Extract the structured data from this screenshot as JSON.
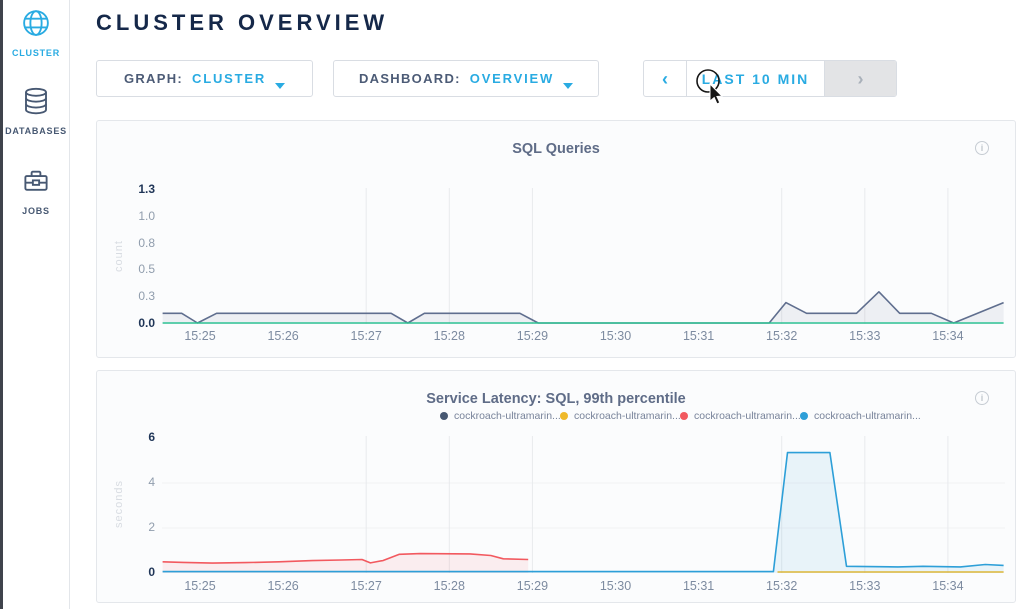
{
  "header": {
    "title": "CLUSTER OVERVIEW"
  },
  "sidebar": {
    "items": [
      {
        "label": "CLUSTER",
        "icon": "globe-icon",
        "active": true
      },
      {
        "label": "DATABASES",
        "icon": "database-icon",
        "active": false
      },
      {
        "label": "JOBS",
        "icon": "briefcase-icon",
        "active": false
      }
    ]
  },
  "controls": {
    "graph": {
      "label": "GRAPH:",
      "value": "CLUSTER"
    },
    "dashboard": {
      "label": "DASHBOARD:",
      "value": "OVERVIEW"
    },
    "time_range": {
      "prev": "‹",
      "label": "LAST 10 MIN",
      "next": "›"
    }
  },
  "colors": {
    "accent_cyan": "#29abe2",
    "navy": "#152849",
    "slate_text": "#4c5b76",
    "series_slate": "#5f6e8e",
    "series_green": "#2ec494",
    "series_yellow": "#efb92a",
    "series_red": "#f2595f",
    "series_blue": "#2d9fd8",
    "grid": "#e8eaed"
  },
  "chart_data": [
    {
      "type": "area",
      "title": "SQL Queries",
      "ylabel": "count",
      "info_icon": "i",
      "ylim": [
        0,
        1.25
      ],
      "yticks": [
        "1.3",
        "1.0",
        "0.8",
        "0.5",
        "0.3",
        "0.0"
      ],
      "xticks": [
        "15:25",
        "15:26",
        "15:27",
        "15:28",
        "15:29",
        "15:30",
        "15:31",
        "15:32",
        "15:33",
        "15:34"
      ],
      "grid_x": [
        "15:27",
        "15:28",
        "15:29",
        "15:32",
        "15:33",
        "15:34"
      ],
      "grid_y_values": [],
      "x_unit": "minutes after 15:00",
      "series": [
        {
          "name": "slate-series",
          "color": "#5f6e8e",
          "fill": true,
          "points": [
            [
              24.55,
              0.1
            ],
            [
              24.78,
              0.1
            ],
            [
              24.97,
              0.0
            ],
            [
              25.2,
              0.1
            ],
            [
              27.3,
              0.1
            ],
            [
              27.5,
              0.0
            ],
            [
              27.7,
              0.1
            ],
            [
              28.85,
              0.1
            ],
            [
              29.07,
              0.0
            ],
            [
              31.85,
              0.0
            ],
            [
              32.05,
              0.2
            ],
            [
              32.3,
              0.1
            ],
            [
              32.9,
              0.1
            ],
            [
              33.17,
              0.3
            ],
            [
              33.42,
              0.1
            ],
            [
              33.8,
              0.1
            ],
            [
              34.07,
              0.0
            ],
            [
              34.67,
              0.2
            ]
          ]
        },
        {
          "name": "green-series",
          "color": "#2ec494",
          "fill": false,
          "points": [
            [
              24.55,
              0.0
            ],
            [
              34.67,
              0.0
            ]
          ]
        }
      ]
    },
    {
      "type": "area",
      "title": "Service Latency: SQL, 99th percentile",
      "ylabel": "seconds",
      "info_icon": "i",
      "ylim": [
        0,
        6
      ],
      "yticks": [
        "6",
        "4",
        "2",
        "0"
      ],
      "xticks": [
        "15:25",
        "15:26",
        "15:27",
        "15:28",
        "15:29",
        "15:30",
        "15:31",
        "15:32",
        "15:33",
        "15:34"
      ],
      "grid_x": [
        "15:27",
        "15:28",
        "15:29",
        "15:32",
        "15:33",
        "15:34"
      ],
      "grid_y_values": [
        2,
        4
      ],
      "x_unit": "minutes after 15:00",
      "legend": [
        {
          "label": "cockroach-ultramarin...",
          "color": "#475872"
        },
        {
          "label": "cockroach-ultramarin...",
          "color": "#efb92a"
        },
        {
          "label": "cockroach-ultramarin...",
          "color": "#f2595f"
        },
        {
          "label": "cockroach-ultramarin...",
          "color": "#2d9fd8"
        }
      ],
      "series": [
        {
          "name": "cockroach-ultramarin... (node 1)",
          "color": "#475872",
          "fill": false,
          "points": []
        },
        {
          "name": "cockroach-ultramarin... (node 2)",
          "color": "#efb92a",
          "fill": false,
          "points": [
            [
              31.95,
              0.04
            ],
            [
              34.67,
              0.04
            ]
          ]
        },
        {
          "name": "cockroach-ultramarin... (node 3)",
          "color": "#f2595f",
          "fill": true,
          "points": [
            [
              24.55,
              0.5
            ],
            [
              24.8,
              0.47
            ],
            [
              25.15,
              0.44
            ],
            [
              25.55,
              0.46
            ],
            [
              25.95,
              0.5
            ],
            [
              26.35,
              0.55
            ],
            [
              26.7,
              0.58
            ],
            [
              26.95,
              0.6
            ],
            [
              27.05,
              0.45
            ],
            [
              27.2,
              0.55
            ],
            [
              27.4,
              0.83
            ],
            [
              27.65,
              0.86
            ],
            [
              28.25,
              0.85
            ],
            [
              28.5,
              0.78
            ],
            [
              28.65,
              0.63
            ],
            [
              28.95,
              0.6
            ]
          ]
        },
        {
          "name": "cockroach-ultramarin... (node 4)",
          "color": "#2d9fd8",
          "fill": true,
          "points": [
            [
              24.55,
              0.06
            ],
            [
              31.9,
              0.06
            ],
            [
              32.07,
              5.35
            ],
            [
              32.58,
              5.35
            ],
            [
              32.78,
              0.3
            ],
            [
              33.4,
              0.27
            ],
            [
              33.7,
              0.3
            ],
            [
              34.15,
              0.27
            ],
            [
              34.45,
              0.38
            ],
            [
              34.67,
              0.34
            ]
          ]
        }
      ]
    }
  ]
}
